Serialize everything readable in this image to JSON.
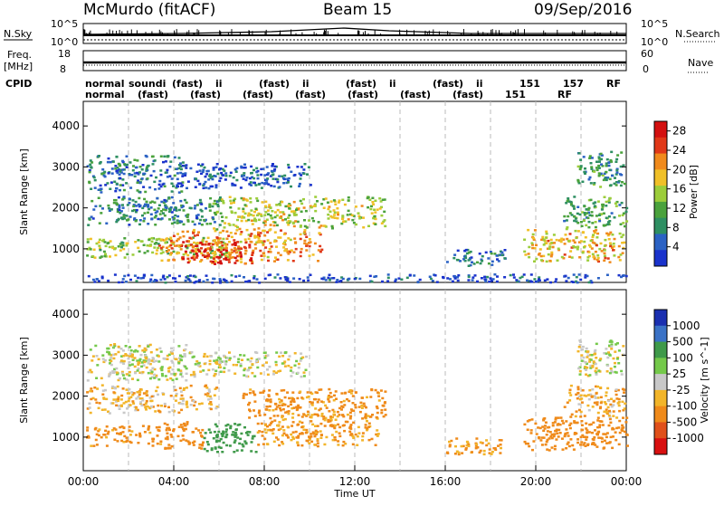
{
  "header": {
    "station": "McMurdo (fitACF)",
    "beam": "Beam 15",
    "date": "09/Sep/2016"
  },
  "aux": {
    "nsky_label": "N.Sky",
    "nsearch_label": "N.Search",
    "nsky_ticks": [
      "10^5",
      "10^0"
    ],
    "nsearch_ticks": [
      "10^5",
      "10^0"
    ],
    "freq_label_1": "Freq.",
    "freq_label_2": "[MHz]",
    "freq_ticks": [
      "18",
      "8"
    ],
    "nave_label": "Nave",
    "nave_ticks": [
      "60",
      "0"
    ],
    "cpid_label": "CPID",
    "cpid_row1": [
      "normal",
      "soundi",
      "(fast)",
      "ii",
      "(fast)",
      "ii",
      "(fast)",
      "ii",
      "(fast)",
      "ii",
      "151",
      "157",
      "RF"
    ],
    "cpid_row2": [
      "normal",
      "(fast)",
      "(fast)",
      "(fast)",
      "(fast)",
      "(fast)",
      "(fast)",
      "(fast)",
      "151",
      "RF"
    ]
  },
  "colors": {
    "power": [
      "#1a33cc",
      "#2b62c4",
      "#2e8f62",
      "#4aa23c",
      "#9ccd3a",
      "#f0c028",
      "#f08a1c",
      "#e03818",
      "#d31010"
    ],
    "velocity": [
      "#1a2fb0",
      "#3a72c6",
      "#3f9a4a",
      "#74c94a",
      "#c8c8c8",
      "#f2b52a",
      "#ef8a1a",
      "#e0501a",
      "#d81010"
    ]
  },
  "chart_data": [
    {
      "type": "heatmap",
      "name": "power",
      "xlabel": "Time UT",
      "ylabel": "Slant Range [km]",
      "xlim": [
        0,
        24
      ],
      "ylim": [
        180,
        4600
      ],
      "x_ticks": [
        "00:00",
        "04:00",
        "08:00",
        "12:00",
        "16:00",
        "20:00",
        "00:00"
      ],
      "y_ticks": [
        1000,
        2000,
        3000,
        4000
      ],
      "colorbar": {
        "label": "Power [dB]",
        "ticks": [
          4,
          8,
          12,
          16,
          20,
          24,
          28
        ],
        "range": [
          0,
          30
        ]
      },
      "echo_regions": [
        {
          "t0": 0.1,
          "t1": 6.5,
          "r0": 800,
          "r1": 1300,
          "level": 14
        },
        {
          "t0": 3.3,
          "t1": 10.5,
          "r0": 700,
          "r1": 1500,
          "level": 21
        },
        {
          "t0": 4.2,
          "t1": 7.5,
          "r0": 650,
          "r1": 1200,
          "level": 27
        },
        {
          "t0": 5.5,
          "t1": 13.4,
          "r0": 1500,
          "r1": 2300,
          "level": 16
        },
        {
          "t0": 0.1,
          "t1": 6.0,
          "r0": 1600,
          "r1": 2300,
          "level": 8
        },
        {
          "t0": 0.1,
          "t1": 4.5,
          "r0": 2400,
          "r1": 3300,
          "level": 7
        },
        {
          "t0": 4.0,
          "t1": 10.0,
          "r0": 2500,
          "r1": 3100,
          "level": 5
        },
        {
          "t0": 16.0,
          "t1": 18.6,
          "r0": 600,
          "r1": 1000,
          "level": 6
        },
        {
          "t0": 19.4,
          "t1": 24.0,
          "r0": 700,
          "r1": 1500,
          "level": 19
        },
        {
          "t0": 21.2,
          "t1": 24.0,
          "r0": 1500,
          "r1": 2300,
          "level": 11
        },
        {
          "t0": 21.8,
          "t1": 23.9,
          "r0": 2500,
          "r1": 3400,
          "level": 9
        },
        {
          "t0": 0.0,
          "t1": 24.0,
          "r0": 200,
          "r1": 400,
          "level": 3
        }
      ]
    },
    {
      "type": "heatmap",
      "name": "velocity",
      "xlabel": "Time UT",
      "ylabel": "Slant Range [km]",
      "xlim": [
        0,
        24
      ],
      "ylim": [
        180,
        4600
      ],
      "x_ticks": [
        "00:00",
        "04:00",
        "08:00",
        "12:00",
        "16:00",
        "20:00",
        "00:00"
      ],
      "y_ticks": [
        1000,
        2000,
        3000,
        4000
      ],
      "colorbar": {
        "label": "Velocity [m s^-1]",
        "ticks": [
          "1000",
          "500",
          "100",
          "25",
          "-25",
          "-100",
          "-500",
          "-1000"
        ]
      },
      "echo_regions": [
        {
          "t0": 0.1,
          "t1": 3.5,
          "r0": 800,
          "r1": 1300,
          "level": -150
        },
        {
          "t0": 3.5,
          "t1": 5.3,
          "r0": 700,
          "r1": 1400,
          "level": -200
        },
        {
          "t0": 5.3,
          "t1": 7.6,
          "r0": 650,
          "r1": 1350,
          "level": 200
        },
        {
          "t0": 7.6,
          "t1": 13.0,
          "r0": 800,
          "r1": 1600,
          "level": -120
        },
        {
          "t0": 7.0,
          "t1": 13.4,
          "r0": 1500,
          "r1": 2200,
          "level": -150
        },
        {
          "t0": 0.1,
          "t1": 6.0,
          "r0": 1600,
          "r1": 2300,
          "level": -60
        },
        {
          "t0": 0.1,
          "t1": 4.5,
          "r0": 2400,
          "r1": 3300,
          "level": 0
        },
        {
          "t0": 4.0,
          "t1": 10.0,
          "r0": 2500,
          "r1": 3100,
          "level": 0
        },
        {
          "t0": 16.0,
          "t1": 18.6,
          "r0": 600,
          "r1": 1000,
          "level": -120
        },
        {
          "t0": 19.4,
          "t1": 24.0,
          "r0": 700,
          "r1": 1500,
          "level": -200
        },
        {
          "t0": 21.2,
          "t1": 24.0,
          "r0": 1500,
          "r1": 2300,
          "level": -80
        },
        {
          "t0": 21.8,
          "t1": 23.9,
          "r0": 2500,
          "r1": 3400,
          "level": 0
        }
      ]
    }
  ]
}
